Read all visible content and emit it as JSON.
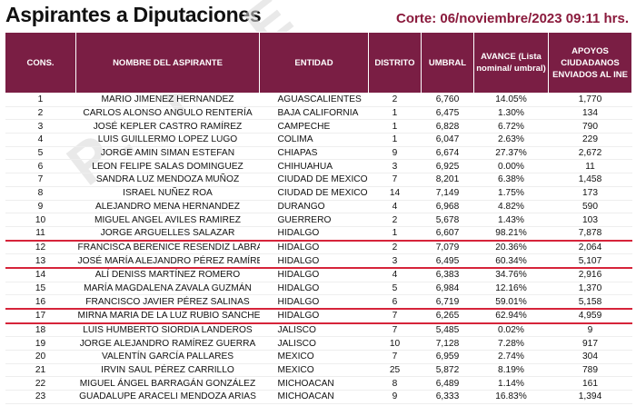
{
  "header": {
    "title": "Aspirantes a Diputaciones",
    "corte": "Corte: 06/noviembre/2023 09:11 hrs."
  },
  "watermark": "P. P. E",
  "table": {
    "columns": [
      "CONS.",
      "NOMBRE DEL ASPIRANTE",
      "ENTIDAD",
      "DISTRITO",
      "UMBRAL",
      "AVANCE (Lista nominal/ umbral)",
      "APOYOS CIUDADANOS ENVIADOS AL INE"
    ],
    "rows": [
      [
        "1",
        "MARIO JIMENEZ HERNANDEZ",
        "AGUASCALIENTES",
        "2",
        "6,760",
        "14.05%",
        "1,770"
      ],
      [
        "2",
        "CARLOS ALONSO ANGULO RENTERÍA",
        "BAJA CALIFORNIA",
        "1",
        "6,475",
        "1.30%",
        "134"
      ],
      [
        "3",
        "JOSÉ KEPLER CASTRO RAMÍREZ",
        "CAMPECHE",
        "1",
        "6,828",
        "6.72%",
        "790"
      ],
      [
        "4",
        "LUIS GUILLERMO LOPEZ LUGO",
        "COLIMA",
        "1",
        "6,047",
        "2.63%",
        "229"
      ],
      [
        "5",
        "JORGE AMIN SIMAN ESTEFAN",
        "CHIAPAS",
        "9",
        "6,674",
        "27.37%",
        "2,672"
      ],
      [
        "6",
        "LEON FELIPE SALAS DOMINGUEZ",
        "CHIHUAHUA",
        "3",
        "6,925",
        "0.00%",
        "11"
      ],
      [
        "7",
        "SANDRA LUZ MENDOZA MUÑOZ",
        "CIUDAD DE MEXICO",
        "7",
        "8,201",
        "6.38%",
        "1,458"
      ],
      [
        "8",
        "ISRAEL NUÑEZ ROA",
        "CIUDAD DE MEXICO",
        "14",
        "7,149",
        "1.75%",
        "173"
      ],
      [
        "9",
        "ALEJANDRO MENA HERNANDEZ",
        "DURANGO",
        "4",
        "6,968",
        "4.82%",
        "590"
      ],
      [
        "10",
        "MIGUEL ANGEL AVILES RAMIREZ",
        "GUERRERO",
        "2",
        "5,678",
        "1.43%",
        "103"
      ],
      [
        "11",
        "JORGE ARGUELLES SALAZAR",
        "HIDALGO",
        "1",
        "6,607",
        "98.21%",
        "7,878"
      ],
      [
        "12",
        "FRANCISCA BERENICE RESENDIZ LABRA",
        "HIDALGO",
        "2",
        "7,079",
        "20.36%",
        "2,064"
      ],
      [
        "13",
        "JOSÉ MARÍA ALEJANDRO PÉREZ RAMÍREZ",
        "HIDALGO",
        "3",
        "6,495",
        "60.34%",
        "5,107"
      ],
      [
        "14",
        "ALÍ DENISS MARTÍNEZ ROMERO",
        "HIDALGO",
        "4",
        "6,383",
        "34.76%",
        "2,916"
      ],
      [
        "15",
        "MARÍA MAGDALENA ZAVALA GUZMÁN",
        "HIDALGO",
        "5",
        "6,984",
        "12.16%",
        "1,370"
      ],
      [
        "16",
        "FRANCISCO JAVIER PÉREZ SALINAS",
        "HIDALGO",
        "6",
        "6,719",
        "59.01%",
        "5,158"
      ],
      [
        "17",
        "MIRNA MARIA DE LA LUZ RUBIO SANCHEZ",
        "HIDALGO",
        "7",
        "6,265",
        "62.94%",
        "4,959"
      ],
      [
        "18",
        "LUIS HUMBERTO SIORDIA LANDEROS",
        "JALISCO",
        "7",
        "5,485",
        "0.02%",
        "9"
      ],
      [
        "19",
        "JORGE ALEJANDRO RAMÍREZ GUERRA",
        "JALISCO",
        "10",
        "7,128",
        "7.28%",
        "917"
      ],
      [
        "20",
        "VALENTÍN GARCÍA PALLARES",
        "MEXICO",
        "7",
        "6,959",
        "2.74%",
        "304"
      ],
      [
        "21",
        "IRVIN SAUL PÉREZ CARRILLO",
        "MEXICO",
        "25",
        "5,872",
        "8.19%",
        "789"
      ],
      [
        "22",
        "MIGUEL ÁNGEL BARRAGÁN GONZÁLEZ",
        "MICHOACAN",
        "8",
        "6,489",
        "1.14%",
        "161"
      ],
      [
        "23",
        "GUADALUPE ARACELI MENDOZA ARIAS",
        "MICHOACAN",
        "9",
        "6,333",
        "16.83%",
        "1,394"
      ]
    ]
  },
  "colors": {
    "header_bg": "#7a1e44",
    "highlight_line": "#d6243a",
    "corte_text": "#8a1a3c"
  }
}
